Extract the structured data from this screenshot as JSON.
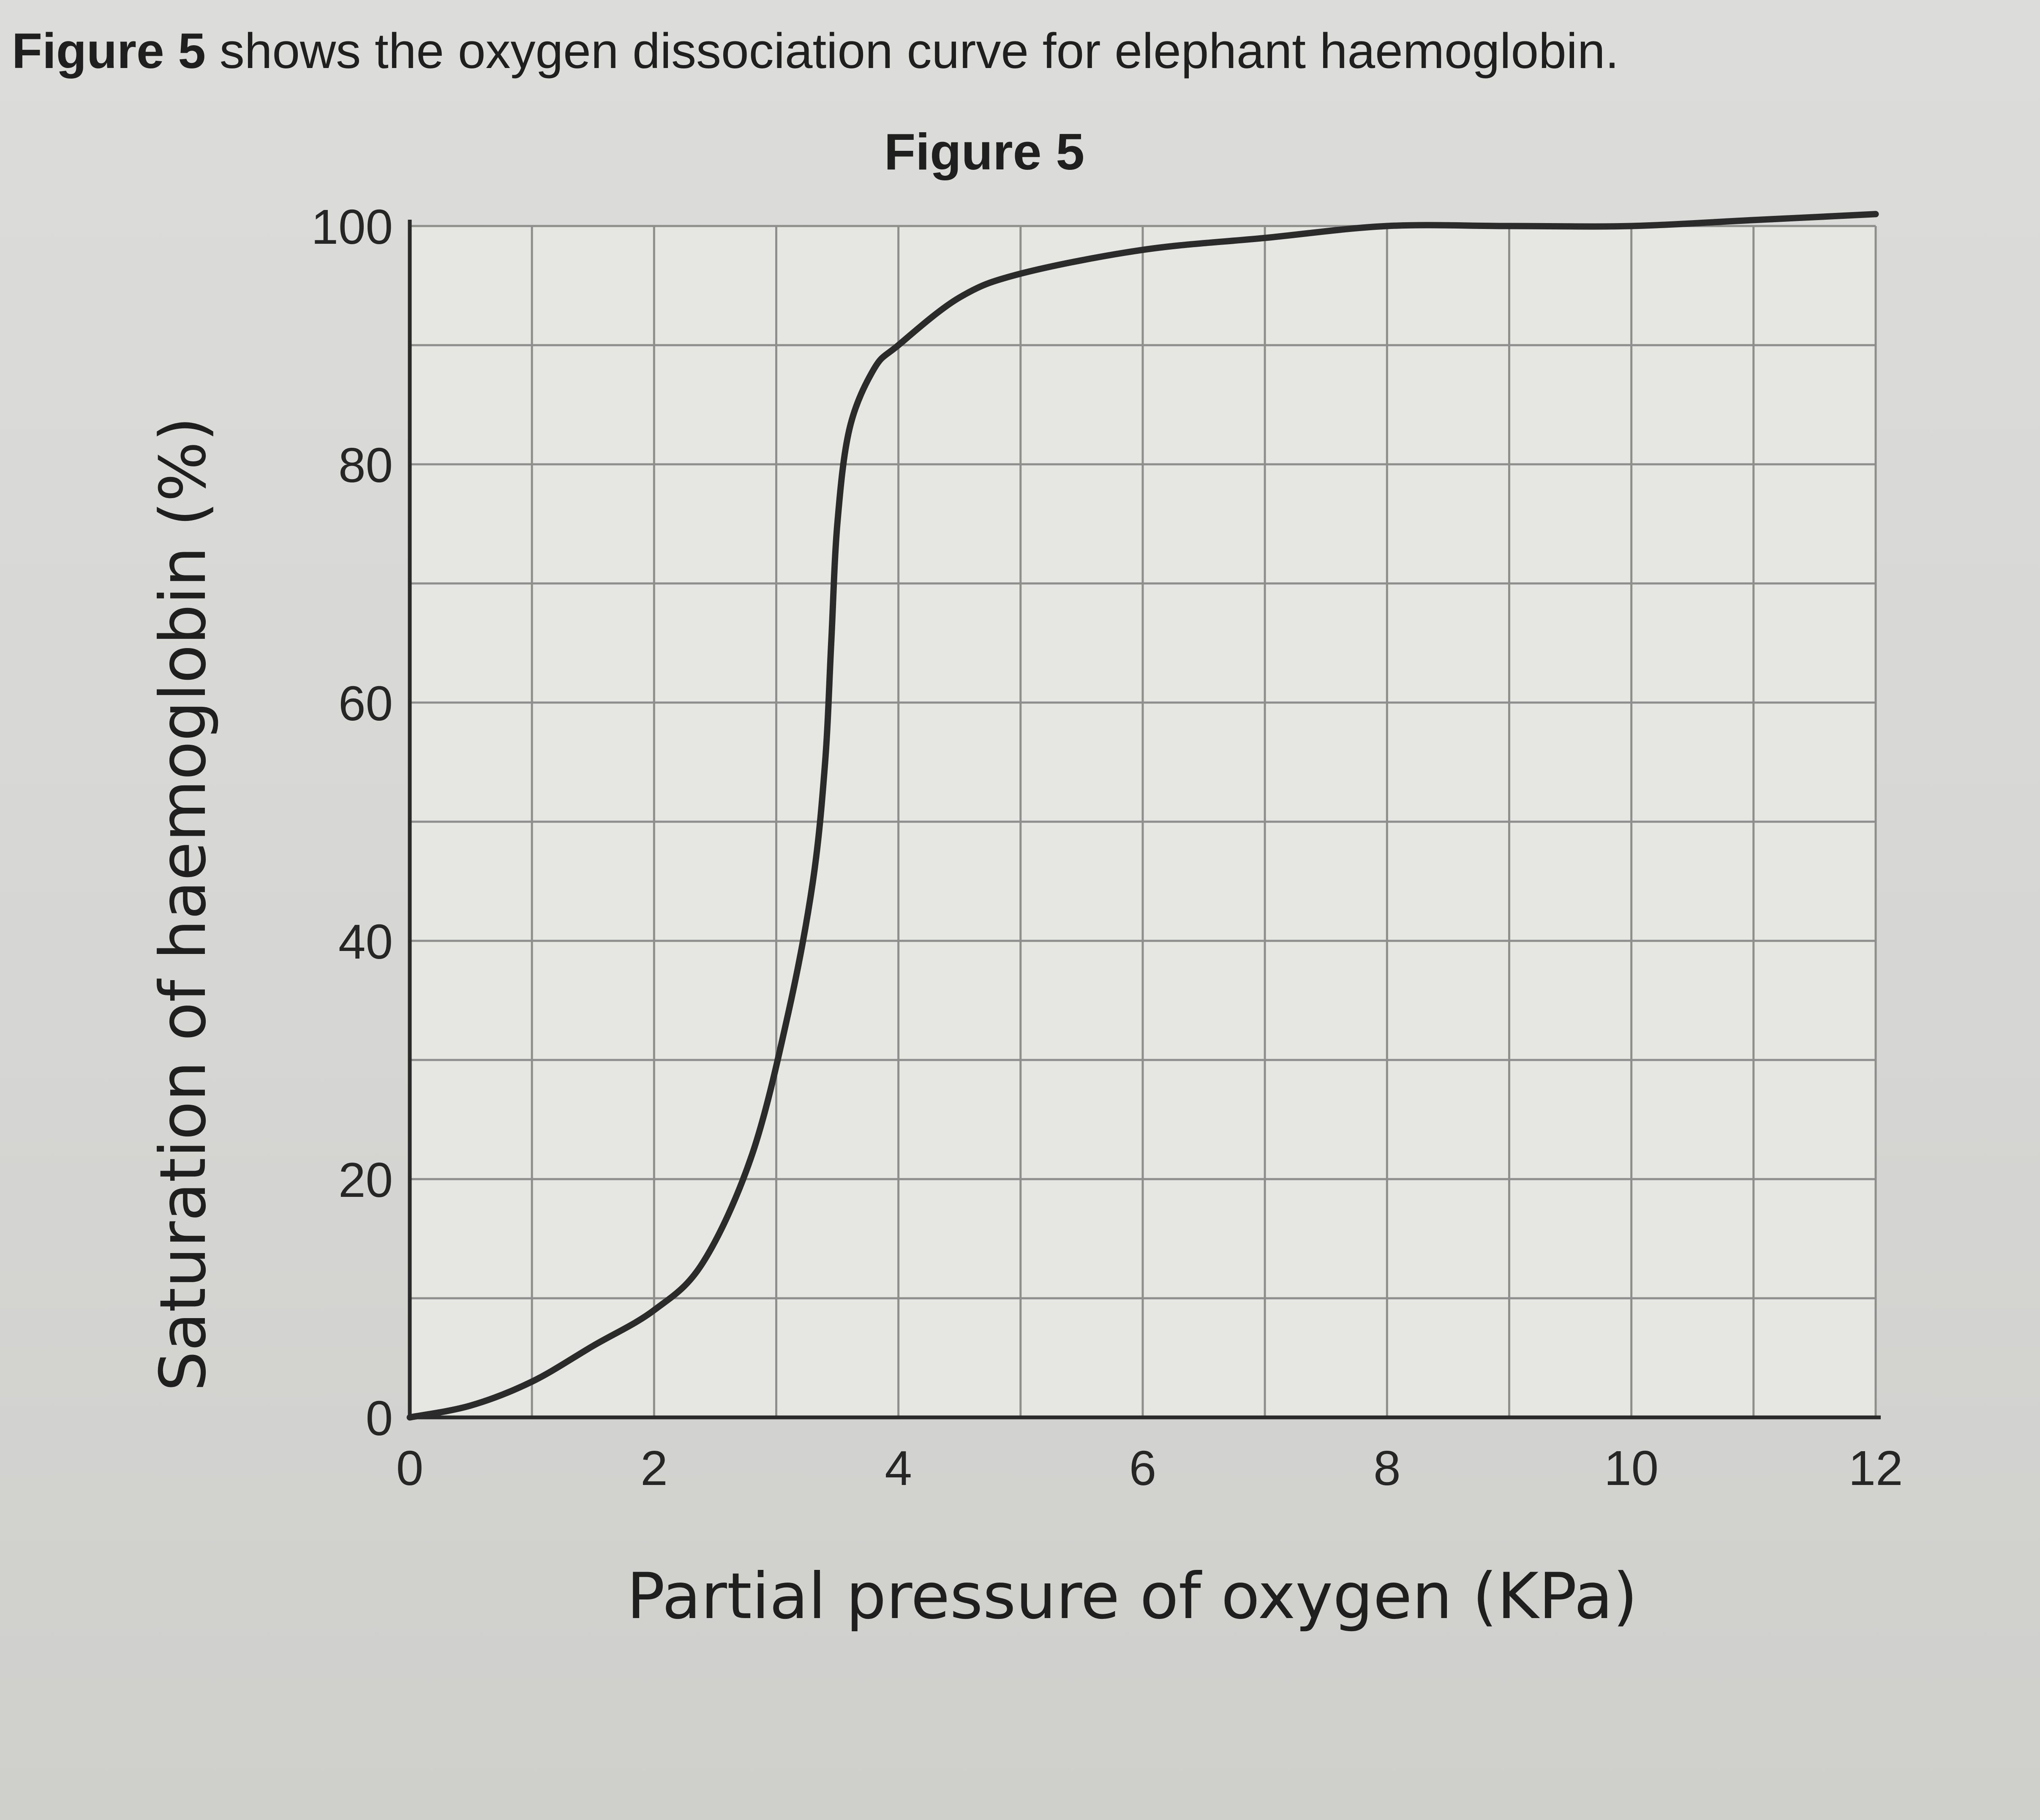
{
  "header": {
    "intro_bold": "Figure 5",
    "intro_rest": " shows the oxygen dissociation curve for elephant haemoglobin.",
    "figure_title": "Figure 5"
  },
  "chart_data": {
    "type": "line",
    "xlabel": "Partial pressure of oxygen (KPa)",
    "ylabel": "Saturation of haemoglobin (%)",
    "xlim": [
      0,
      12
    ],
    "ylim": [
      0,
      100
    ],
    "xticks": [
      0,
      2,
      4,
      6,
      8,
      10,
      12
    ],
    "yticks": [
      0,
      20,
      40,
      60,
      80,
      100
    ],
    "grid": true,
    "grid_step": {
      "x": 1,
      "y": 10
    },
    "line_color": "#2b2b2b",
    "series": [
      {
        "x": [
          0,
          0.5,
          1,
          1.5,
          2,
          2.4,
          2.8,
          3.1,
          3.3,
          3.4,
          3.45,
          3.5,
          3.6,
          3.8,
          4.0,
          4.5,
          5,
          6,
          7,
          8,
          9,
          10,
          11,
          12
        ],
        "y": [
          0,
          1,
          3,
          6,
          9,
          13,
          22,
          34,
          45,
          55,
          65,
          75,
          83,
          88,
          90,
          94,
          96,
          98,
          99,
          100,
          100,
          100,
          100.5,
          101
        ]
      }
    ]
  }
}
